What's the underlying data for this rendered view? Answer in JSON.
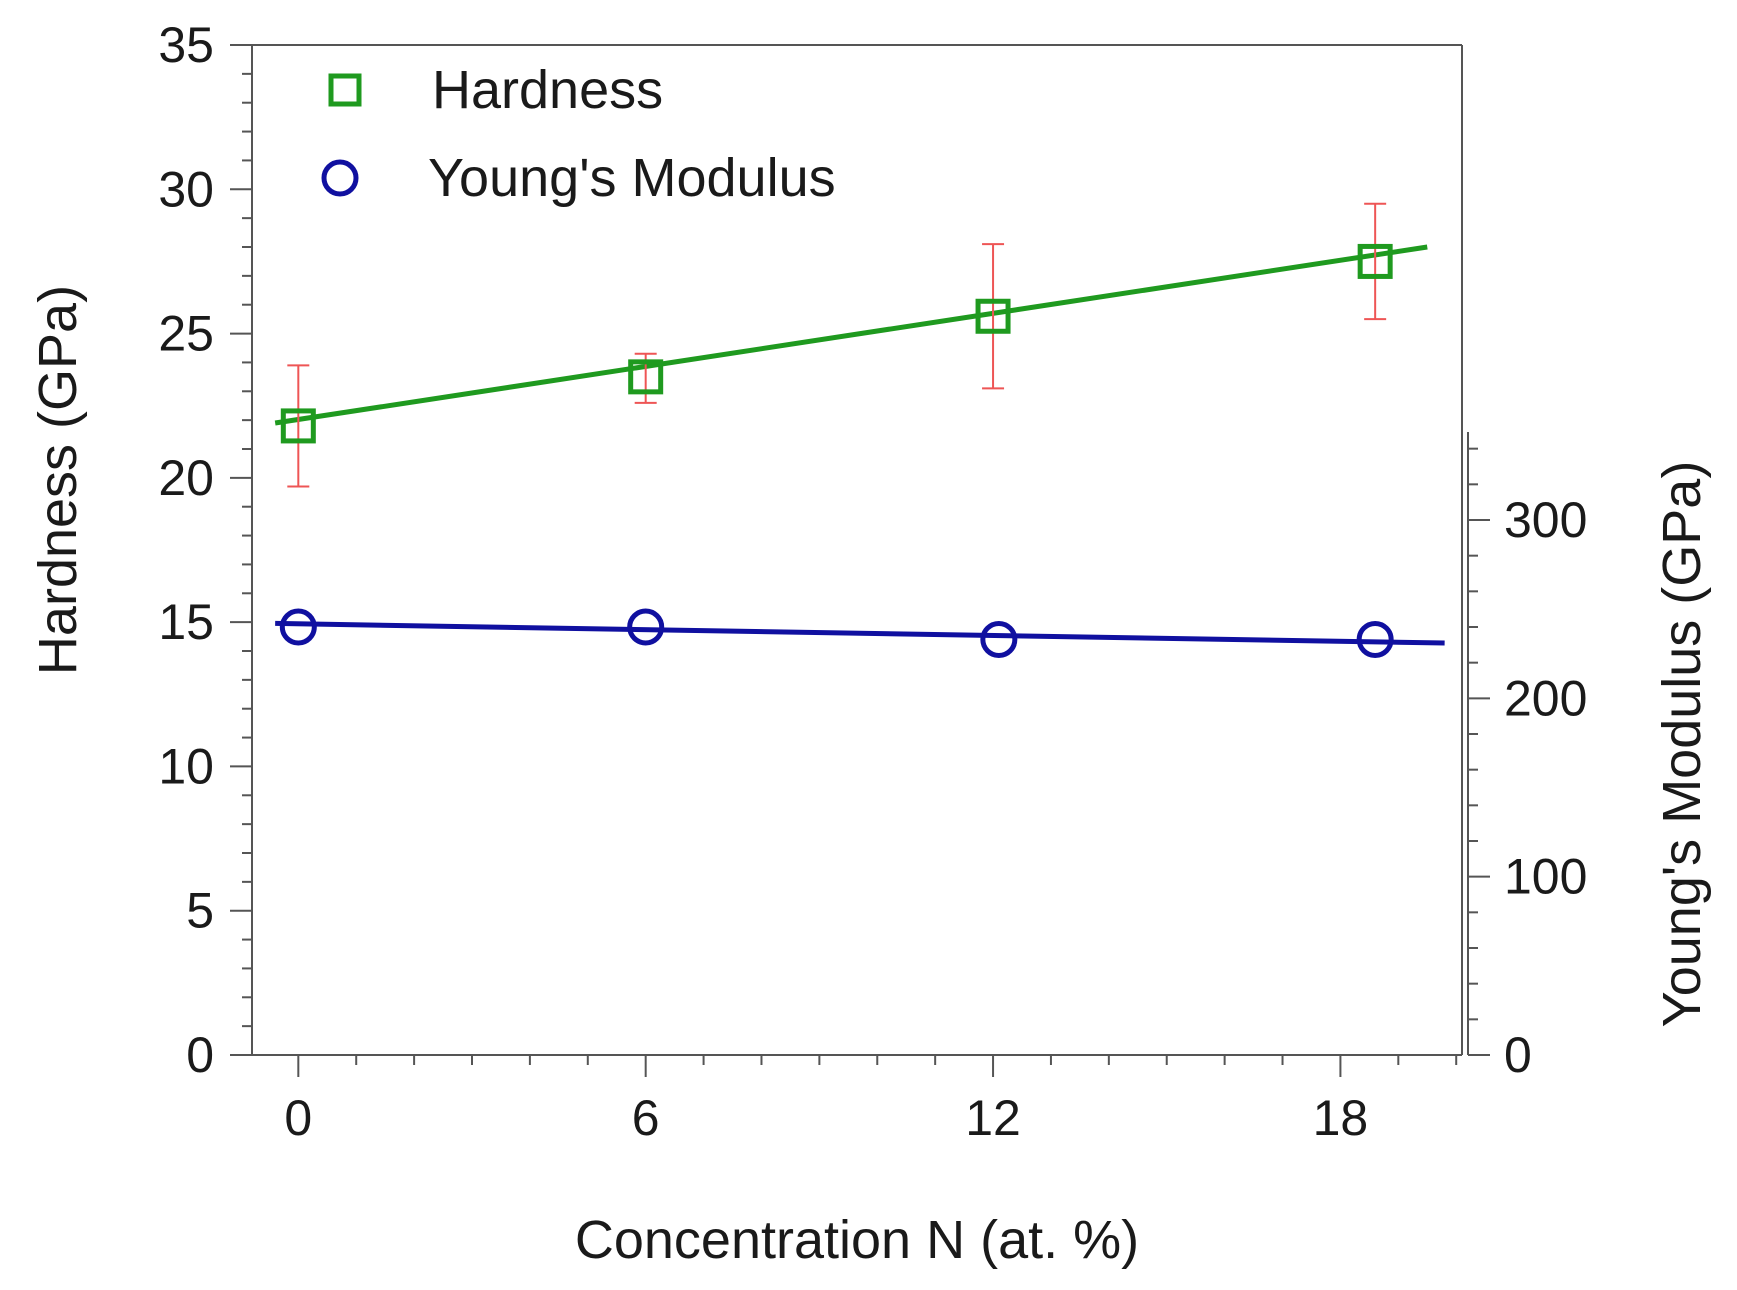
{
  "chart_data": {
    "type": "scatter",
    "title": "",
    "xlabel": "Concentration N  (at. %)",
    "ylabel": "Hardness  (GPa)",
    "y2label": "Young's Modulus  (GPa)",
    "xlim": [
      -0.8,
      20.1
    ],
    "ylim": [
      0,
      35
    ],
    "y2lim": [
      0,
      350
    ],
    "x_ticks": [
      0,
      6,
      12,
      18
    ],
    "y_ticks": [
      0,
      5,
      10,
      15,
      20,
      25,
      30,
      35
    ],
    "y2_ticks": [
      0,
      100,
      200,
      300
    ],
    "grid": false,
    "legend_position": "top-left",
    "series": [
      {
        "name": "Hardness",
        "axis": "left",
        "marker": "square",
        "color": "#1f9a1f",
        "error_color": "#ee5555",
        "x": [
          0,
          6,
          12,
          18.6
        ],
        "y": [
          21.8,
          23.5,
          25.6,
          27.5
        ],
        "yerr_low": [
          19.7,
          22.6,
          23.1,
          25.5
        ],
        "yerr_high": [
          23.9,
          24.3,
          28.1,
          29.5
        ],
        "fit": {
          "x": [
            -0.4,
            19.5
          ],
          "y": [
            21.9,
            28.0
          ]
        }
      },
      {
        "name": "Young's Modulus",
        "axis": "right",
        "marker": "circle",
        "color": "#1010a0",
        "x": [
          0,
          6,
          12.1,
          18.6
        ],
        "y": [
          240,
          240,
          233,
          233
        ],
        "fit": {
          "x": [
            -0.4,
            19.8
          ],
          "y": [
            242,
            231
          ]
        }
      }
    ]
  }
}
